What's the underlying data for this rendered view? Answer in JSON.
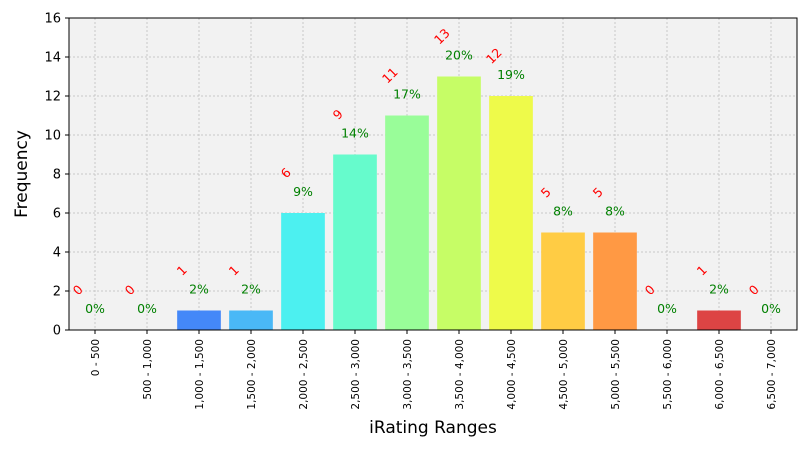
{
  "chart_data": {
    "type": "bar",
    "xlabel": "iRating Ranges",
    "ylabel": "Frequency",
    "ylim": [
      0,
      16
    ],
    "yticks": [
      0,
      2,
      4,
      6,
      8,
      10,
      12,
      14,
      16
    ],
    "grid": true,
    "categories": [
      "0 - 500",
      "500 - 1,000",
      "1,000 - 1,500",
      "1,500 - 2,000",
      "2,000 - 2,500",
      "2,500 - 3,000",
      "3,000 - 3,500",
      "3,500 - 4,000",
      "4,000 - 4,500",
      "4,500 - 5,000",
      "5,000 - 5,500",
      "5,500 - 6,000",
      "6,000 - 6,500",
      "6,500 - 7,000"
    ],
    "values": [
      0,
      0,
      1,
      1,
      6,
      9,
      11,
      13,
      12,
      5,
      5,
      0,
      1,
      0
    ],
    "count_labels": [
      "0",
      "0",
      "1",
      "1",
      "6",
      "9",
      "11",
      "13",
      "12",
      "5",
      "5",
      "0",
      "1",
      "0"
    ],
    "percent_labels": [
      "0%",
      "0%",
      "2%",
      "2%",
      "9%",
      "14%",
      "17%",
      "20%",
      "19%",
      "8%",
      "8%",
      "0%",
      "2%",
      "0%"
    ],
    "colors": [
      "#3a2fb0",
      "#3355ee",
      "#4488f8",
      "#4ab8f6",
      "#4cf0f0",
      "#66fbcc",
      "#99fd99",
      "#c6fd66",
      "#eefa4a",
      "#ffcc44",
      "#ff9944",
      "#ff6633",
      "#dd4444",
      "#aa1111"
    ],
    "plot_background": "#f2f2f2",
    "count_color": "#ff0000",
    "percent_color": "#008000"
  }
}
